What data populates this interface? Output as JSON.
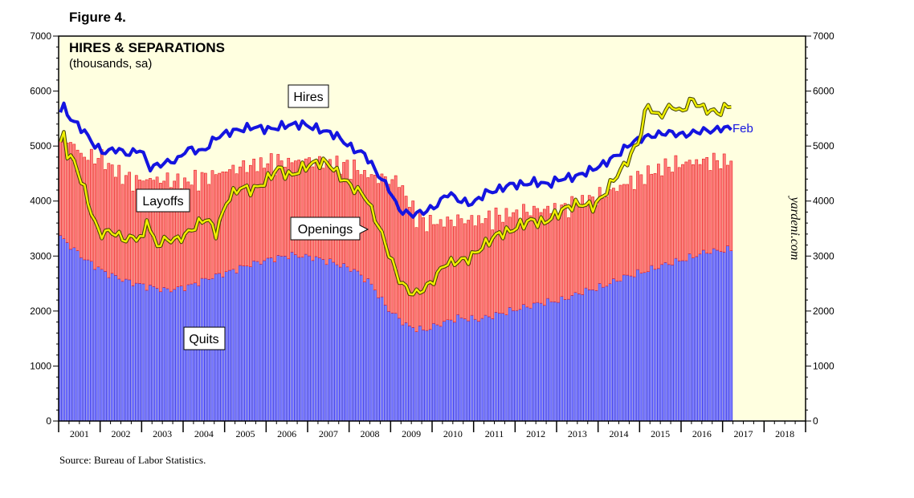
{
  "figure_label": "Figure 4.",
  "source": "Source: Bureau of Labor Statistics.",
  "watermark": "yardeni.com",
  "chart_data": {
    "type": "bar",
    "title": "HIRES & SEPARATIONS",
    "subtitle": "(thousands, sa)",
    "xlabel": "",
    "ylabel": "",
    "x_start": 2000.917,
    "x_end": 2018.917,
    "ylim": [
      0,
      7000
    ],
    "y_ticks": [
      0,
      1000,
      2000,
      3000,
      4000,
      5000,
      6000,
      7000
    ],
    "years": [
      "2001",
      "2002",
      "2003",
      "2004",
      "2005",
      "2006",
      "2007",
      "2008",
      "2009",
      "2010",
      "2011",
      "2012",
      "2013",
      "2014",
      "2015",
      "2016",
      "2017",
      "2018"
    ],
    "colors": {
      "plot_bg": "#ffffe0",
      "quits_fill": "#8080ff",
      "quits_stroke": "#1a1ae6",
      "layoffs_fill": "#ff8080",
      "layoffs_stroke": "#e61a1a",
      "hires_line": "#1414e0",
      "openings_line": "#f0f000",
      "openings_outline": "#404000"
    },
    "bar_start": 2000.917,
    "bar_step": 0.08333,
    "quits_anchors": [
      [
        2000.92,
        3350
      ],
      [
        2001.5,
        2950
      ],
      [
        2002.0,
        2700
      ],
      [
        2002.5,
        2550
      ],
      [
        2003.0,
        2450
      ],
      [
        2003.5,
        2380
      ],
      [
        2004.0,
        2450
      ],
      [
        2004.5,
        2600
      ],
      [
        2005.0,
        2720
      ],
      [
        2005.5,
        2850
      ],
      [
        2006.0,
        2950
      ],
      [
        2006.5,
        3020
      ],
      [
        2007.0,
        2980
      ],
      [
        2007.5,
        2880
      ],
      [
        2008.0,
        2750
      ],
      [
        2008.4,
        2500
      ],
      [
        2008.8,
        2050
      ],
      [
        2009.3,
        1720
      ],
      [
        2009.7,
        1650
      ],
      [
        2010.0,
        1750
      ],
      [
        2010.5,
        1880
      ],
      [
        2011.0,
        1850
      ],
      [
        2011.5,
        1950
      ],
      [
        2012.0,
        2050
      ],
      [
        2012.5,
        2150
      ],
      [
        2013.0,
        2200
      ],
      [
        2013.5,
        2350
      ],
      [
        2014.0,
        2450
      ],
      [
        2014.5,
        2620
      ],
      [
        2015.0,
        2720
      ],
      [
        2015.5,
        2850
      ],
      [
        2016.0,
        2950
      ],
      [
        2016.5,
        3080
      ],
      [
        2017.08,
        3120
      ]
    ],
    "layoffs_anchors": [
      [
        2000.92,
        1650
      ],
      [
        2001.1,
        1900
      ],
      [
        2001.5,
        1850
      ],
      [
        2001.9,
        2050
      ],
      [
        2002.3,
        1900
      ],
      [
        2002.7,
        1850
      ],
      [
        2003.0,
        1950
      ],
      [
        2003.5,
        2000
      ],
      [
        2004.0,
        1900
      ],
      [
        2004.5,
        1850
      ],
      [
        2005.0,
        1850
      ],
      [
        2005.5,
        1800
      ],
      [
        2006.0,
        1750
      ],
      [
        2006.5,
        1700
      ],
      [
        2007.0,
        1750
      ],
      [
        2007.5,
        1800
      ],
      [
        2008.0,
        1850
      ],
      [
        2008.4,
        1950
      ],
      [
        2008.8,
        2350
      ],
      [
        2009.1,
        2500
      ],
      [
        2009.5,
        2050
      ],
      [
        2010.0,
        1850
      ],
      [
        2010.5,
        1780
      ],
      [
        2011.0,
        1800
      ],
      [
        2011.5,
        1780
      ],
      [
        2012.0,
        1750
      ],
      [
        2012.5,
        1700
      ],
      [
        2013.0,
        1650
      ],
      [
        2013.5,
        1650
      ],
      [
        2014.0,
        1650
      ],
      [
        2014.5,
        1680
      ],
      [
        2015.0,
        1750
      ],
      [
        2015.5,
        1780
      ],
      [
        2016.0,
        1750
      ],
      [
        2016.5,
        1650
      ],
      [
        2017.08,
        1600
      ]
    ],
    "hires_anchors": [
      [
        2000.92,
        5600
      ],
      [
        2001.0,
        5750
      ],
      [
        2001.2,
        5500
      ],
      [
        2001.5,
        5300
      ],
      [
        2001.8,
        5000
      ],
      [
        2002.0,
        4880
      ],
      [
        2002.3,
        4950
      ],
      [
        2002.6,
        4850
      ],
      [
        2002.9,
        4950
      ],
      [
        2003.1,
        4600
      ],
      [
        2003.5,
        4700
      ],
      [
        2003.8,
        4750
      ],
      [
        2004.0,
        4950
      ],
      [
        2004.4,
        4900
      ],
      [
        2004.7,
        5150
      ],
      [
        2005.0,
        5250
      ],
      [
        2005.3,
        5300
      ],
      [
        2005.6,
        5350
      ],
      [
        2006.0,
        5300
      ],
      [
        2006.4,
        5380
      ],
      [
        2006.8,
        5400
      ],
      [
        2007.2,
        5300
      ],
      [
        2007.6,
        5200
      ],
      [
        2008.0,
        4950
      ],
      [
        2008.3,
        4850
      ],
      [
        2008.6,
        4500
      ],
      [
        2008.9,
        4200
      ],
      [
        2009.1,
        3850
      ],
      [
        2009.4,
        3750
      ],
      [
        2009.7,
        3800
      ],
      [
        2010.0,
        3900
      ],
      [
        2010.3,
        4150
      ],
      [
        2010.6,
        4000
      ],
      [
        2010.9,
        3950
      ],
      [
        2011.2,
        4150
      ],
      [
        2011.5,
        4200
      ],
      [
        2011.8,
        4300
      ],
      [
        2012.1,
        4300
      ],
      [
        2012.4,
        4350
      ],
      [
        2012.7,
        4300
      ],
      [
        2013.0,
        4400
      ],
      [
        2013.4,
        4450
      ],
      [
        2013.7,
        4550
      ],
      [
        2014.0,
        4650
      ],
      [
        2014.4,
        4850
      ],
      [
        2014.7,
        5050
      ],
      [
        2015.0,
        5150
      ],
      [
        2015.3,
        5200
      ],
      [
        2015.6,
        5250
      ],
      [
        2016.0,
        5200
      ],
      [
        2016.4,
        5280
      ],
      [
        2016.7,
        5280
      ],
      [
        2017.0,
        5350
      ],
      [
        2017.08,
        5300
      ]
    ],
    "openings_anchors": [
      [
        2000.92,
        4750
      ],
      [
        2001.0,
        5400
      ],
      [
        2001.1,
        4900
      ],
      [
        2001.3,
        4700
      ],
      [
        2001.5,
        4300
      ],
      [
        2001.7,
        3800
      ],
      [
        2001.9,
        3400
      ],
      [
        2002.2,
        3450
      ],
      [
        2002.5,
        3300
      ],
      [
        2002.8,
        3350
      ],
      [
        2003.0,
        3300
      ],
      [
        2003.05,
        3800
      ],
      [
        2003.15,
        3350
      ],
      [
        2003.3,
        3200
      ],
      [
        2003.5,
        3300
      ],
      [
        2003.8,
        3300
      ],
      [
        2004.0,
        3400
      ],
      [
        2004.3,
        3600
      ],
      [
        2004.5,
        3700
      ],
      [
        2004.7,
        3400
      ],
      [
        2005.0,
        4050
      ],
      [
        2005.3,
        4250
      ],
      [
        2005.6,
        4200
      ],
      [
        2005.9,
        4350
      ],
      [
        2006.2,
        4600
      ],
      [
        2006.5,
        4450
      ],
      [
        2006.8,
        4600
      ],
      [
        2007.1,
        4700
      ],
      [
        2007.4,
        4700
      ],
      [
        2007.7,
        4450
      ],
      [
        2008.0,
        4250
      ],
      [
        2008.3,
        4100
      ],
      [
        2008.6,
        3600
      ],
      [
        2008.9,
        3000
      ],
      [
        2009.1,
        2600
      ],
      [
        2009.3,
        2400
      ],
      [
        2009.5,
        2300
      ],
      [
        2009.8,
        2450
      ],
      [
        2010.0,
        2600
      ],
      [
        2010.2,
        2850
      ],
      [
        2010.5,
        2900
      ],
      [
        2010.8,
        2950
      ],
      [
        2011.1,
        3150
      ],
      [
        2011.5,
        3400
      ],
      [
        2011.8,
        3450
      ],
      [
        2012.0,
        3550
      ],
      [
        2012.3,
        3650
      ],
      [
        2012.6,
        3600
      ],
      [
        2012.9,
        3750
      ],
      [
        2013.2,
        3900
      ],
      [
        2013.5,
        3950
      ],
      [
        2013.8,
        3900
      ],
      [
        2014.0,
        4050
      ],
      [
        2014.3,
        4400
      ],
      [
        2014.6,
        4700
      ],
      [
        2014.9,
        5100
      ],
      [
        2015.0,
        5400
      ],
      [
        2015.1,
        5800
      ],
      [
        2015.3,
        5550
      ],
      [
        2015.5,
        5600
      ],
      [
        2015.7,
        5750
      ],
      [
        2015.9,
        5600
      ],
      [
        2016.0,
        5700
      ],
      [
        2016.2,
        5850
      ],
      [
        2016.4,
        5700
      ],
      [
        2016.6,
        5650
      ],
      [
        2016.8,
        5600
      ],
      [
        2017.0,
        5700
      ],
      [
        2017.08,
        5750
      ]
    ],
    "labels": {
      "hires": "Hires",
      "layoffs": "Layoffs",
      "openings": "Openings",
      "quits": "Quits",
      "feb": "Feb"
    }
  }
}
